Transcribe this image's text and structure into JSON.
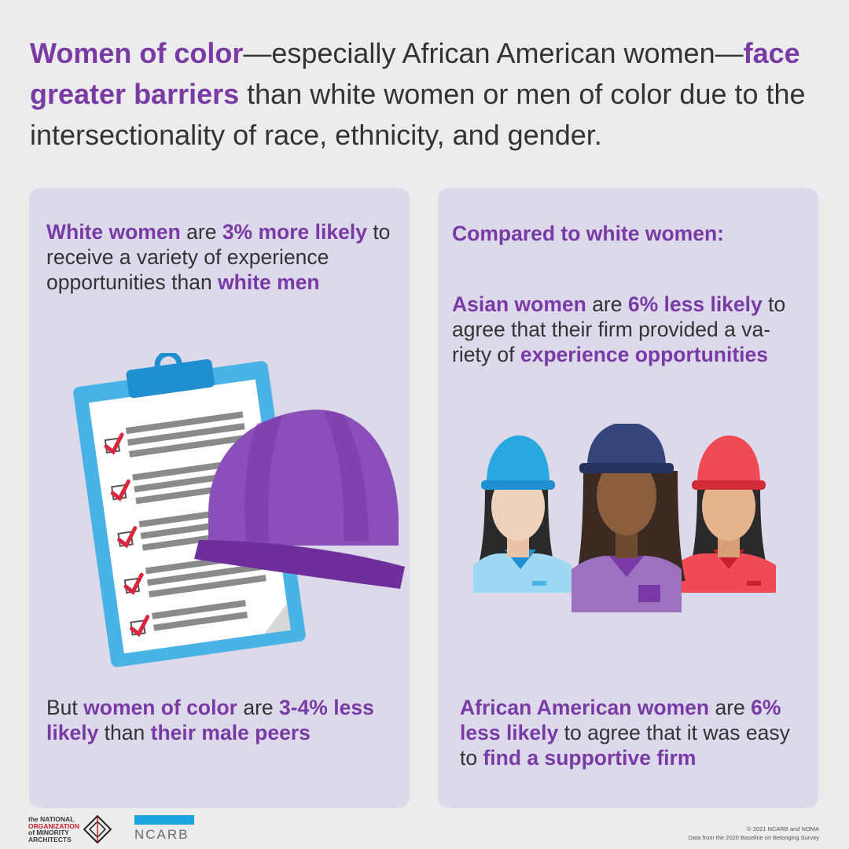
{
  "headline": {
    "p1": "Women of color",
    "p2": "—especially African American women—",
    "p3": "face greater barriers",
    "p4": " than white women or men of color due to the intersectionality of race, ethnicity, and gender."
  },
  "left_panel": {
    "top": {
      "s1": "White women",
      "s2": " are ",
      "s3": "3% more likely",
      "s4": " to receive a variety of experience opportunities than ",
      "s5": "white men"
    },
    "bottom": {
      "s1": "But ",
      "s2": "women of color",
      "s3": " are ",
      "s4": "3-4% less likely",
      "s5": " than ",
      "s6": "their male peers"
    }
  },
  "right_panel": {
    "heading": "Compared to white women:",
    "mid": {
      "s1": "Asian women",
      "s2": " are ",
      "s3": "6% less likely",
      "s4": " to agree that their firm provided a va-riety of ",
      "s5": "experience opportunities"
    },
    "bottom": {
      "s1": "African American women",
      "s2": " are ",
      "s3": "6% less likely",
      "s4": " to agree that it was easy to ",
      "s5": "find a supportive firm"
    }
  },
  "footer": {
    "noma_line1": "the NATIONAL",
    "noma_line2": "ORGANIZATION",
    "noma_line3": "of MINORITY",
    "noma_line4": "ARCHITECTS",
    "ncarb": "NCARB",
    "copyright": "© 2021 NCARB and NOMA",
    "source": "Data from the 2020 Baseline on Belonging Survey"
  },
  "colors": {
    "accent": "#7a3aa6",
    "panel": "#dcdaea",
    "background": "#ececec",
    "ncarb_blue": "#1aa3dc"
  },
  "icons": [
    "clipboard-checklist-icon",
    "hard-hat-icon",
    "women-workers-icon",
    "noma-logo-icon"
  ]
}
